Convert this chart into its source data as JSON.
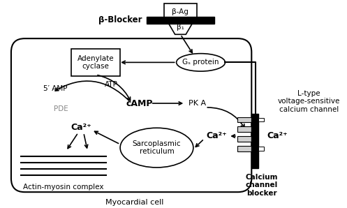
{
  "bg_color": "#ffffff",
  "line_color": "#000000",
  "gray_color": "#888888",
  "title_text": "Myocardial cell",
  "beta_blocker_label": "β-Blocker",
  "beta_ag_label": "β-Ag",
  "beta1_label": "β₁",
  "gs_label": "Gₛ protein",
  "adenylate_label": "Adenylate\ncyclase",
  "atp_label": "ATP",
  "amp_label": "5′ AMP",
  "camp_label": "cAMP",
  "pka_label": "PK A",
  "pde_label": "PDE",
  "ca2plus_left_label": "Ca²⁺",
  "ca2plus_mid_label": "Ca²⁺",
  "ca2plus_right_label": "Ca²⁺",
  "sarc_label": "Sarcoplasmic\nreticulum",
  "actin_label": "Actin-myosin complex",
  "ltype_label": "L-type\nvoltage-sensitive\ncalcium channel",
  "ccb_label": "Calcium\nchannel\nblocker"
}
